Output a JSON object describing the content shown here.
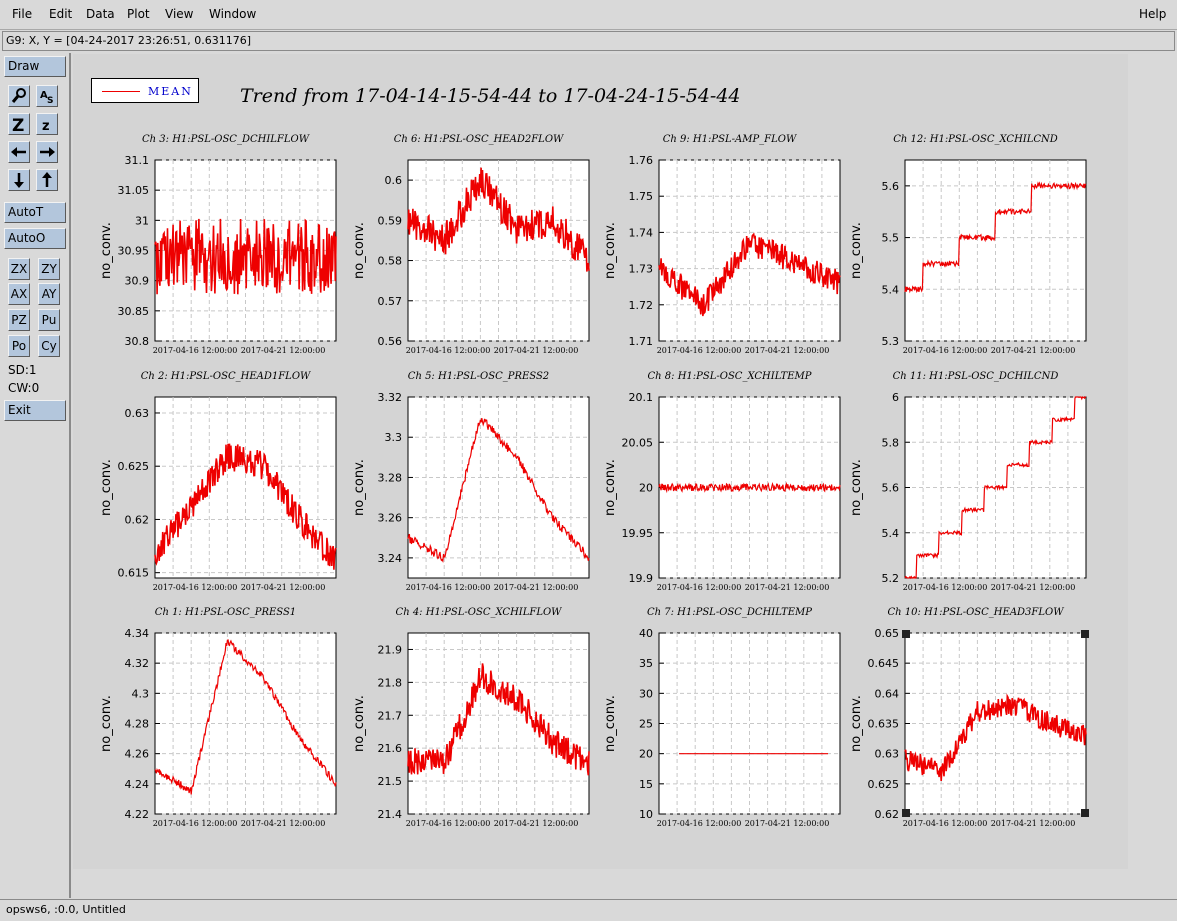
{
  "menubar": {
    "items": [
      "File",
      "Edit",
      "Data",
      "Plot",
      "View",
      "Window"
    ],
    "help": "Help"
  },
  "coord_readout": "G9: X, Y = [04-24-2017 23:26:51, 0.631176]",
  "toolbar": {
    "draw": "Draw",
    "autot": "AutoT",
    "autoo": "AutoO",
    "zx": "ZX",
    "zy": "ZY",
    "ax": "AX",
    "ay": "AY",
    "pz": "PZ",
    "pu": "Pu",
    "po": "Po",
    "cy": "Cy",
    "sd": "SD:1",
    "cw": "CW:0",
    "exit": "Exit",
    "icons": [
      "zoom-icon",
      "text-annotate-icon",
      "zoom-in-icon",
      "zoom-out-icon",
      "arrow-left-icon",
      "arrow-right-icon",
      "arrow-down-icon",
      "arrow-up-icon"
    ]
  },
  "status": "opsws6, :0.0, Untitled",
  "legend": {
    "label": "MEAN",
    "color": "#ee0000"
  },
  "title": "Trend from 17-04-14-15-54-44 to 17-04-24-15-54-44",
  "xtick_labels": [
    "2017-04-16 12:00:00",
    "2017-04-21 12:00:00"
  ],
  "chart_data": [
    {
      "type": "line",
      "title": "Ch 3: H1:PSL-OSC_DCHILFLOW",
      "ylabel": "no_conv.",
      "yticks": [
        "30.8",
        "30.85",
        "30.9",
        "30.95",
        "31",
        "31.05",
        "31.1"
      ],
      "ylim": [
        30.8,
        31.1
      ],
      "series": [
        {
          "values": [
            30.94,
            30.94,
            30.94,
            30.94
          ]
        }
      ]
    },
    {
      "type": "line",
      "title": "Ch 6: H1:PSL-OSC_HEAD2FLOW",
      "ylabel": "no_conv.",
      "yticks": [
        "0.56",
        "0.57",
        "0.58",
        "0.59",
        "0.6"
      ],
      "ylim": [
        0.56,
        0.605
      ],
      "series": [
        {
          "values": [
            0.59,
            0.585,
            0.6,
            0.588,
            0.59,
            0.58
          ]
        }
      ]
    },
    {
      "type": "line",
      "title": "Ch 9: H1:PSL-AMP_FLOW",
      "ylabel": "no_conv.",
      "yticks": [
        "1.71",
        "1.72",
        "1.73",
        "1.74",
        "1.75",
        "1.76"
      ],
      "ylim": [
        1.71,
        1.76
      ],
      "series": [
        {
          "values": [
            1.73,
            1.72,
            1.737,
            1.732,
            1.726
          ]
        }
      ]
    },
    {
      "type": "line",
      "title": "Ch 12: H1:PSL-OSC_XCHILCND",
      "ylabel": "no_conv.",
      "yticks": [
        "5.3",
        "5.4",
        "5.5",
        "5.6"
      ],
      "ylim": [
        5.3,
        5.65
      ],
      "series": [
        {
          "values": [
            5.4,
            5.45,
            5.5,
            5.55,
            5.6,
            5.6
          ]
        }
      ]
    },
    {
      "type": "line",
      "title": "Ch 2: H1:PSL-OSC_HEAD1FLOW",
      "ylabel": "no_conv.",
      "yticks": [
        "0.615",
        "0.62",
        "0.625",
        "0.63"
      ],
      "ylim": [
        0.6145,
        0.6315
      ],
      "series": [
        {
          "values": [
            0.617,
            0.621,
            0.626,
            0.625,
            0.62,
            0.616
          ]
        }
      ]
    },
    {
      "type": "line",
      "title": "Ch 5: H1:PSL-OSC_PRESS2",
      "ylabel": "no_conv.",
      "yticks": [
        "3.24",
        "3.26",
        "3.28",
        "3.3",
        "3.32"
      ],
      "ylim": [
        3.23,
        3.32
      ],
      "series": [
        {
          "values": [
            3.25,
            3.24,
            3.31,
            3.29,
            3.26,
            3.24
          ]
        }
      ]
    },
    {
      "type": "line",
      "title": "Ch 8: H1:PSL-OSC_XCHILTEMP",
      "ylabel": "no_conv.",
      "yticks": [
        "19.9",
        "19.95",
        "20",
        "20.05",
        "20.1"
      ],
      "ylim": [
        19.9,
        20.1
      ],
      "series": [
        {
          "values": [
            20.0,
            20.0,
            20.0,
            20.0
          ]
        }
      ]
    },
    {
      "type": "line",
      "title": "Ch 11: H1:PSL-OSC_DCHILCND",
      "ylabel": "no_conv.",
      "yticks": [
        "5.2",
        "5.4",
        "5.6",
        "5.8",
        "6"
      ],
      "ylim": [
        5.2,
        6.0
      ],
      "series": [
        {
          "values": [
            5.2,
            5.3,
            5.4,
            5.5,
            5.6,
            5.7,
            5.8,
            5.9,
            6.0
          ]
        }
      ]
    },
    {
      "type": "line",
      "title": "Ch 1: H1:PSL-OSC_PRESS1",
      "ylabel": "no_conv.",
      "yticks": [
        "4.22",
        "4.24",
        "4.26",
        "4.28",
        "4.3",
        "4.32",
        "4.34"
      ],
      "ylim": [
        4.22,
        4.34
      ],
      "series": [
        {
          "values": [
            4.25,
            4.235,
            4.335,
            4.31,
            4.27,
            4.24
          ]
        }
      ]
    },
    {
      "type": "line",
      "title": "Ch 4: H1:PSL-OSC_XCHILFLOW",
      "ylabel": "no_conv.",
      "yticks": [
        "21.4",
        "21.5",
        "21.6",
        "21.7",
        "21.8",
        "21.9"
      ],
      "ylim": [
        21.4,
        21.95
      ],
      "series": [
        {
          "values": [
            21.56,
            21.55,
            21.82,
            21.75,
            21.62,
            21.55
          ]
        }
      ]
    },
    {
      "type": "line",
      "title": "Ch 7: H1:PSL-OSC_DCHILTEMP",
      "ylabel": "no_conv.",
      "yticks": [
        "10",
        "15",
        "20",
        "25",
        "30",
        "35",
        "40"
      ],
      "ylim": [
        10,
        40
      ],
      "series": [
        {
          "values": [
            20,
            20,
            20,
            20
          ]
        }
      ]
    },
    {
      "type": "line",
      "title": "Ch 10: H1:PSL-OSC_HEAD3FLOW",
      "ylabel": "no_conv.",
      "yticks": [
        "0.62",
        "0.625",
        "0.63",
        "0.635",
        "0.64",
        "0.645",
        "0.65"
      ],
      "ylim": [
        0.62,
        0.65
      ],
      "series": [
        {
          "values": [
            0.629,
            0.627,
            0.637,
            0.638,
            0.635,
            0.633
          ]
        }
      ]
    }
  ]
}
